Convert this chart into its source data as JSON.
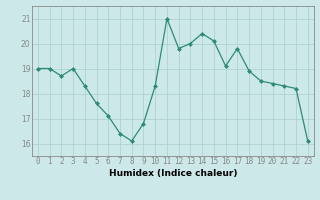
{
  "x": [
    0,
    1,
    2,
    3,
    4,
    5,
    6,
    7,
    8,
    9,
    10,
    11,
    12,
    13,
    14,
    15,
    16,
    17,
    18,
    19,
    20,
    21,
    22,
    23
  ],
  "y": [
    19.0,
    19.0,
    18.7,
    19.0,
    18.3,
    17.6,
    17.1,
    16.4,
    16.1,
    16.8,
    18.3,
    21.0,
    19.8,
    20.0,
    20.4,
    20.1,
    19.1,
    19.8,
    18.9,
    18.5,
    18.4,
    18.3,
    18.2,
    16.1
  ],
  "xlabel": "Humidex (Indice chaleur)",
  "xlim": [
    -0.5,
    23.5
  ],
  "ylim": [
    15.5,
    21.5
  ],
  "yticks": [
    16,
    17,
    18,
    19,
    20,
    21
  ],
  "xticks": [
    0,
    1,
    2,
    3,
    4,
    5,
    6,
    7,
    8,
    9,
    10,
    11,
    12,
    13,
    14,
    15,
    16,
    17,
    18,
    19,
    20,
    21,
    22,
    23
  ],
  "line_color": "#2e8b77",
  "marker_color": "#2e8b77",
  "bg_color": "#cce8e8",
  "grid_color": "#aacece",
  "axis_color": "#888888",
  "label_fontsize": 6.5,
  "tick_fontsize": 5.5
}
